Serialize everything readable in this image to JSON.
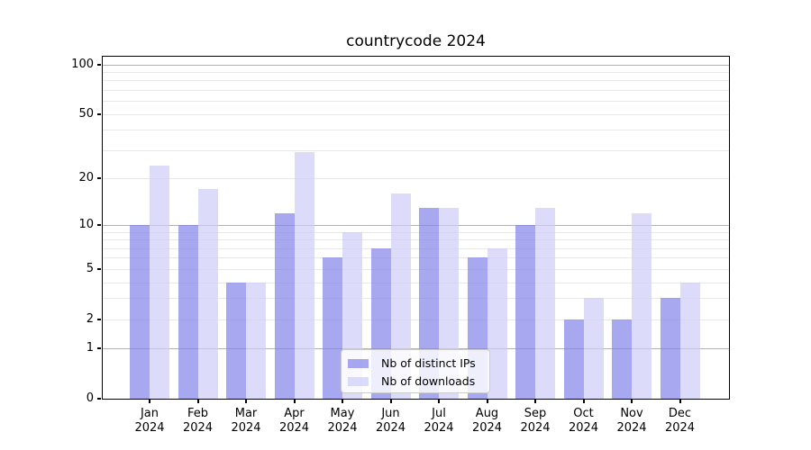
{
  "chart_data": {
    "type": "bar",
    "title": "countrycode 2024",
    "categories": [
      "Jan",
      "Feb",
      "Mar",
      "Apr",
      "May",
      "Jun",
      "Jul",
      "Aug",
      "Sep",
      "Oct",
      "Nov",
      "Dec"
    ],
    "x_year": "2024",
    "series": [
      {
        "name": "Nb of distinct IPs",
        "color": "#8383ea",
        "values": [
          10,
          10,
          4,
          12,
          6,
          7,
          13,
          6,
          10,
          2,
          2,
          3
        ]
      },
      {
        "name": "Nb of downloads",
        "color": "#cdcdf8",
        "values": [
          24,
          17,
          4,
          29,
          9,
          16,
          13,
          7,
          13,
          3,
          12,
          4
        ]
      }
    ],
    "bar_alpha": 0.7,
    "y_scale": "log1p",
    "ylim": [
      0,
      113
    ],
    "y_ticks": [
      100,
      50,
      20,
      10,
      5,
      2,
      1,
      0
    ],
    "y_major_gridlines": [
      1,
      10,
      100
    ],
    "y_minor_gridlines": [
      2,
      3,
      4,
      5,
      6,
      7,
      8,
      9,
      20,
      30,
      40,
      50,
      60,
      70,
      80,
      90
    ],
    "grid": true,
    "legend_position": "lower center"
  },
  "colors": {
    "major_grid": "#b2b2b2",
    "minor_grid": "#e8e8e8",
    "spine": "#000000",
    "text": "#000000",
    "legend_border": "#cccccc"
  }
}
